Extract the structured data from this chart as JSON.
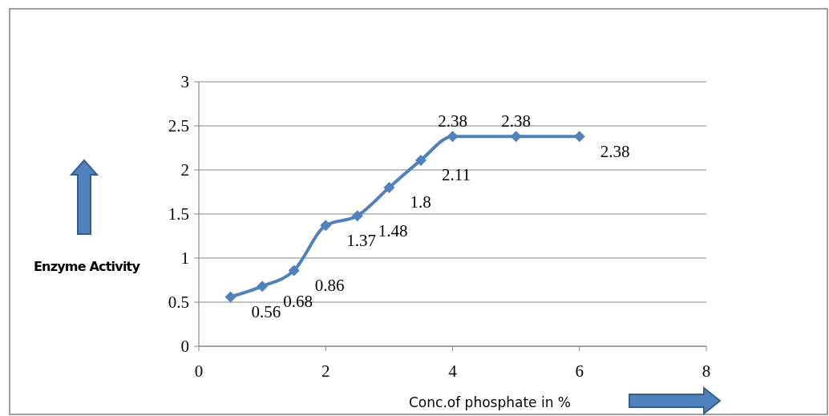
{
  "chart_data": {
    "type": "line",
    "ylabel": "Enzyme Activity",
    "xlabel": "Conc.of phosphate in %",
    "x": [
      0.5,
      1,
      1.5,
      2,
      2.5,
      3,
      3.5,
      4,
      5,
      6
    ],
    "values": [
      0.56,
      0.68,
      0.86,
      1.37,
      1.48,
      1.8,
      2.11,
      2.38,
      2.38,
      2.38
    ],
    "color": "#4f81bd",
    "xlim": [
      0,
      8
    ],
    "xticks": [
      0,
      2,
      4,
      6,
      8
    ],
    "ylim": [
      0,
      3
    ],
    "yticks": [
      0,
      0.5,
      1,
      1.5,
      2,
      2.5,
      3
    ],
    "grid": "y",
    "marker": "diamond",
    "line_style": "solid",
    "data_labels": true
  }
}
